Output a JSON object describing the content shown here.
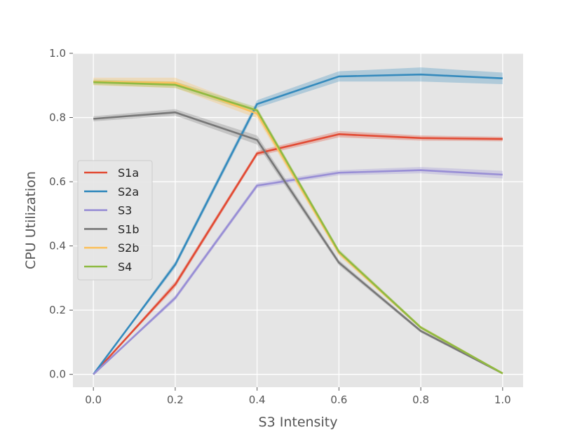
{
  "chart_data": {
    "type": "line",
    "title": "",
    "xlabel": "S3 Intensity",
    "ylabel": "CPU Utilization",
    "xlim": [
      -0.05,
      1.05
    ],
    "ylim": [
      -0.04,
      1.0
    ],
    "x": [
      0.0,
      0.2,
      0.4,
      0.6,
      0.8,
      1.0
    ],
    "xticks": [
      "0.0",
      "0.2",
      "0.4",
      "0.6",
      "0.8",
      "1.0"
    ],
    "yticks": [
      "0.0",
      "0.2",
      "0.4",
      "0.6",
      "0.8",
      "1.0"
    ],
    "grid": true,
    "legend_position": "center-left",
    "series": [
      {
        "name": "S1a",
        "color": "#e24a33",
        "values": [
          0.0,
          0.28,
          0.688,
          0.748,
          0.736,
          0.733
        ],
        "band": [
          0.0,
          0.01,
          0.008,
          0.01,
          0.008,
          0.007
        ]
      },
      {
        "name": "S2a",
        "color": "#348abd",
        "values": [
          0.0,
          0.342,
          0.842,
          0.928,
          0.934,
          0.922
        ],
        "band": [
          0.0,
          0.01,
          0.012,
          0.016,
          0.022,
          0.018
        ]
      },
      {
        "name": "S3",
        "color": "#988ed5",
        "values": [
          0.0,
          0.238,
          0.588,
          0.628,
          0.636,
          0.622
        ],
        "band": [
          0.0,
          0.008,
          0.008,
          0.008,
          0.01,
          0.012
        ]
      },
      {
        "name": "S1b",
        "color": "#777777",
        "values": [
          0.796,
          0.816,
          0.73,
          0.348,
          0.135,
          0.003
        ],
        "band": [
          0.008,
          0.01,
          0.014,
          0.008,
          0.005,
          0.003
        ]
      },
      {
        "name": "S2b",
        "color": "#fbc15e",
        "values": [
          0.912,
          0.908,
          0.812,
          0.378,
          0.146,
          0.003
        ],
        "band": [
          0.012,
          0.016,
          0.014,
          0.008,
          0.005,
          0.003
        ]
      },
      {
        "name": "S4",
        "color": "#8eba42",
        "values": [
          0.91,
          0.902,
          0.822,
          0.382,
          0.146,
          0.003
        ],
        "band": [
          0.008,
          0.01,
          0.01,
          0.008,
          0.005,
          0.003
        ]
      }
    ]
  }
}
